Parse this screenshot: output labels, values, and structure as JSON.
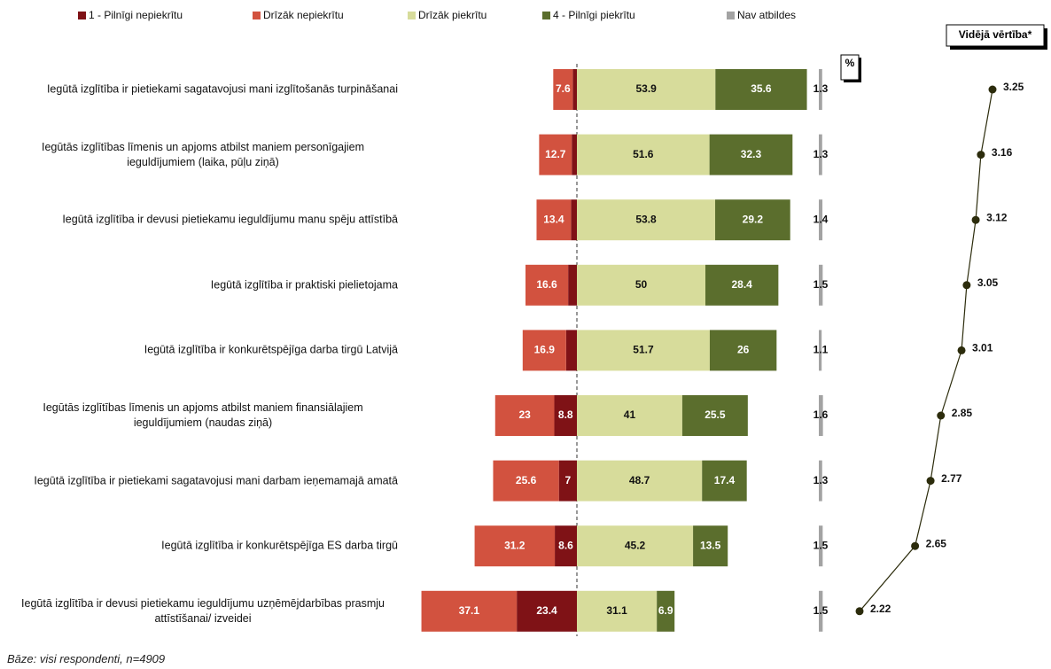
{
  "chart_data": {
    "type": "bar",
    "categories": [
      "Iegūtā izglītība ir pietiekami sagatavojusi mani izglītošanās turpināšanai",
      "Iegūtās izglītības līmenis un apjoms atbilst maniem personīgajiem ieguldījumiem (laika, pūļu ziņā)",
      "Iegūtā izglītība ir devusi pietiekamu ieguldījumu manu spēju attīstībā",
      "Iegūtā izglītība ir praktiski pielietojama",
      "Iegūtā izglītība ir konkurētspējīga darba tirgū Latvijā",
      "Iegūtās izglītības līmenis un apjoms atbilst maniem finansiālajiem ieguldījumiem (naudas ziņā)",
      "Iegūtā izglītība ir pietiekami sagatavojusi mani darbam ieņemamajā amatā",
      "Iegūtā izglītība ir konkurētspējīga ES darba tirgū",
      "Iegūtā izglītība ir devusi pietiekamu ieguldījumu uzņēmējdarbības prasmju attīstīšanai/ izveidei"
    ],
    "series": [
      {
        "name": "1 - Pilnīgi nepiekrītu",
        "color": "#7f1216",
        "side": "left",
        "values": [
          1.6,
          2.0,
          2.3,
          3.4,
          4.2,
          8.8,
          7.0,
          8.6,
          23.4
        ]
      },
      {
        "name": "Drīzāk nepiekrītu",
        "color": "#d2523f",
        "side": "left",
        "values": [
          7.6,
          12.7,
          13.4,
          16.6,
          16.9,
          23.0,
          25.6,
          31.2,
          37.1
        ]
      },
      {
        "name": "Drīzāk piekrītu",
        "color": "#d7dc9b",
        "side": "right",
        "values": [
          53.9,
          51.6,
          53.8,
          50.0,
          51.7,
          41.0,
          48.7,
          45.2,
          31.1
        ]
      },
      {
        "name": "4 - Pilnīgi piekrītu",
        "color": "#5b6e2d",
        "side": "right",
        "values": [
          35.6,
          32.3,
          29.2,
          28.4,
          26.0,
          25.5,
          17.4,
          13.5,
          6.9
        ]
      },
      {
        "name": "Nav atbildes",
        "color": "#a3a3a3",
        "side": "aside",
        "values": [
          1.3,
          1.3,
          1.4,
          1.5,
          1.1,
          1.6,
          1.3,
          1.5,
          1.5
        ]
      }
    ],
    "unit_label": "%",
    "mean": {
      "title": "Vidējā vērtība*",
      "color": "#2c2c0c",
      "values": [
        3.25,
        3.16,
        3.12,
        3.05,
        3.01,
        2.85,
        2.77,
        2.65,
        2.22
      ]
    },
    "footnote": "Bāze: visi respondenti, n=4909"
  }
}
